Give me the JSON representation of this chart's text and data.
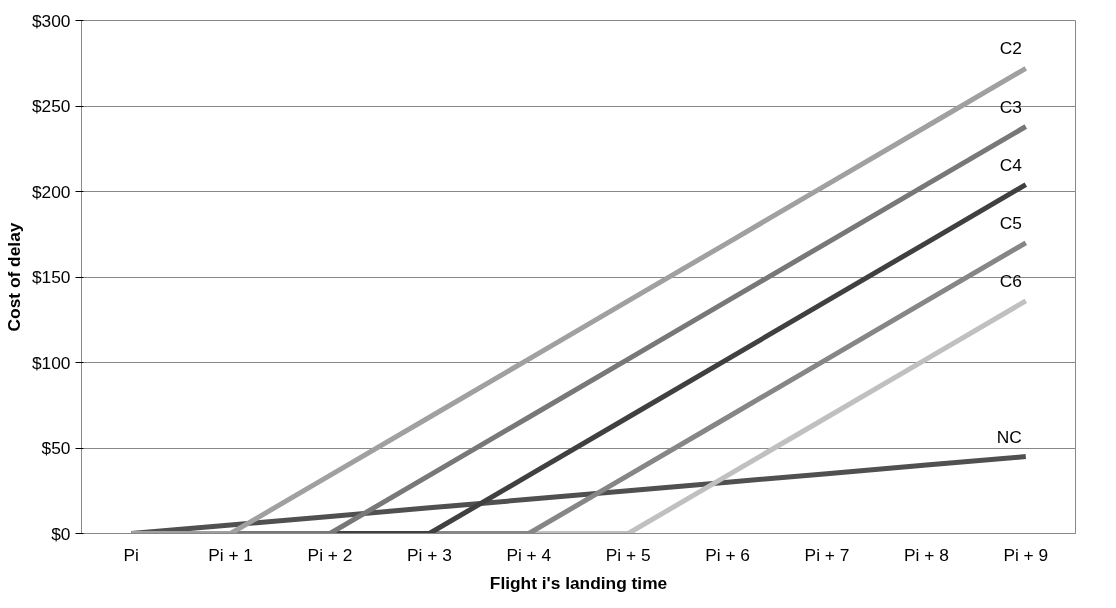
{
  "chart_data": {
    "type": "line",
    "xlabel": "Flight i's landing time",
    "ylabel": "Cost of delay",
    "categories": [
      "Pi",
      "Pi + 1",
      "Pi + 2",
      "Pi + 3",
      "Pi + 4",
      "Pi + 5",
      "Pi + 6",
      "Pi + 7",
      "Pi + 8",
      "Pi + 9"
    ],
    "series": [
      {
        "name": "NC",
        "color": "#505050",
        "values": [
          0,
          5,
          10,
          15,
          20,
          25,
          30,
          35,
          40,
          45
        ]
      },
      {
        "name": "C6",
        "color": "#c0c0c0",
        "values": [
          0,
          0,
          0,
          0,
          0,
          0,
          34,
          68,
          102,
          136
        ]
      },
      {
        "name": "C5",
        "color": "#868686",
        "values": [
          0,
          0,
          0,
          0,
          0,
          34,
          68,
          102,
          136,
          170
        ]
      },
      {
        "name": "C4",
        "color": "#404040",
        "values": [
          0,
          0,
          0,
          0,
          34,
          68,
          102,
          136,
          170,
          204
        ]
      },
      {
        "name": "C3",
        "color": "#787878",
        "values": [
          0,
          0,
          0,
          34,
          68,
          102,
          136,
          170,
          204,
          238
        ]
      },
      {
        "name": "C2",
        "color": "#a0a0a0",
        "values": [
          0,
          0,
          34,
          68,
          102,
          136,
          170,
          204,
          238,
          272
        ]
      }
    ],
    "ylim": [
      0,
      300
    ],
    "yticks": [
      {
        "value": 0,
        "label": "$0"
      },
      {
        "value": 50,
        "label": "$50"
      },
      {
        "value": 100,
        "label": "$100"
      },
      {
        "value": 150,
        "label": "$150"
      },
      {
        "value": 200,
        "label": "$200"
      },
      {
        "value": 250,
        "label": "$250"
      },
      {
        "value": 300,
        "label": "$300"
      }
    ],
    "grid": "y",
    "marker": "none",
    "line_style": "solid"
  }
}
